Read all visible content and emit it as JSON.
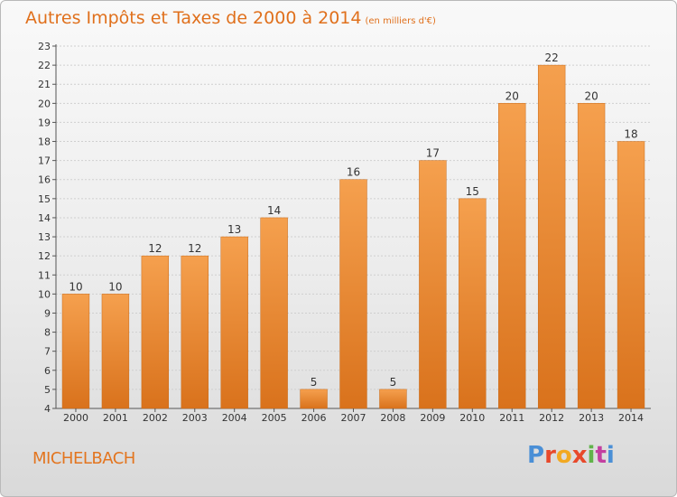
{
  "header": {
    "title": "Autres Impôts et Taxes de 2000 à 2014",
    "unit": "(en milliers d'€)"
  },
  "footer": {
    "town": "MICHELBACH",
    "logo_letters": [
      "P",
      "r",
      "o",
      "x",
      "i",
      "t",
      "i"
    ]
  },
  "colors": {
    "bar_light": "#f5a04e",
    "bar_dark": "#d9721c",
    "title": "#e0701c",
    "grid": "#cfcfcf"
  },
  "chart_data": {
    "type": "bar",
    "title": "Autres Impôts et Taxes de 2000 à 2014",
    "xlabel": "",
    "ylabel": "",
    "categories": [
      "2000",
      "2001",
      "2002",
      "2003",
      "2004",
      "2005",
      "2006",
      "2007",
      "2008",
      "2009",
      "2010",
      "2011",
      "2012",
      "2013",
      "2014"
    ],
    "values": [
      10,
      10,
      12,
      12,
      13,
      14,
      5,
      16,
      5,
      17,
      15,
      20,
      22,
      20,
      18
    ],
    "ylim": [
      4,
      23
    ],
    "yticks": [
      4,
      5,
      6,
      7,
      8,
      9,
      10,
      11,
      12,
      13,
      14,
      15,
      16,
      17,
      18,
      19,
      20,
      21,
      22,
      23
    ],
    "grid": true,
    "data_labels": true
  }
}
